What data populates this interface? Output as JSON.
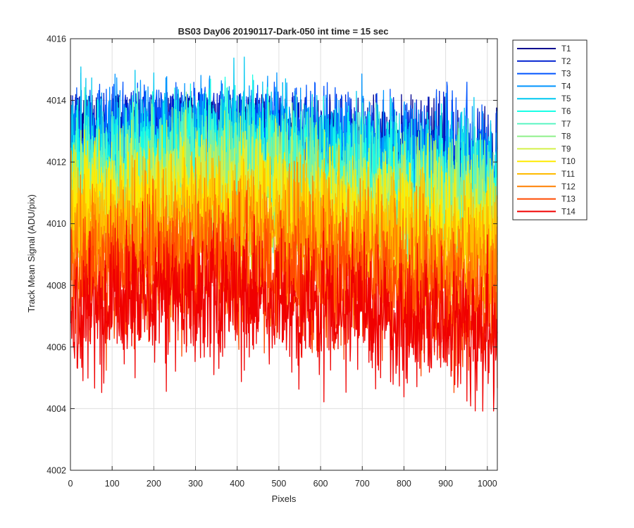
{
  "chart_data": {
    "type": "line",
    "title": "BS03 Day06 20190117-Dark-050 int time = 15 sec",
    "xlabel": "Pixels",
    "ylabel": "Track Mean Signal (ADU/pix)",
    "xlim": [
      0,
      1024
    ],
    "ylim": [
      4002,
      4016
    ],
    "xticks": [
      0,
      100,
      200,
      300,
      400,
      500,
      600,
      700,
      800,
      900,
      1000
    ],
    "yticks": [
      4002,
      4004,
      4006,
      4008,
      4010,
      4012,
      4014,
      4016
    ],
    "grid": true,
    "legend_position": "outside-top-right",
    "x_range_points": [
      1,
      1024
    ],
    "noise_amplitude": 2.4,
    "series": [
      {
        "name": "T1",
        "color": "#00008F",
        "mean": 4012.3,
        "trend": [
          4012.6,
          4012.9,
          4012.4,
          4011.8
        ],
        "min": 4009.4,
        "max": 4014.2
      },
      {
        "name": "T2",
        "color": "#0020D0",
        "mean": 4012.2,
        "trend": [
          4012.5,
          4012.8,
          4012.3,
          4011.6
        ],
        "min": 4009.3,
        "max": 4014.3
      },
      {
        "name": "T3",
        "color": "#0055FF",
        "mean": 4012.1,
        "trend": [
          4012.4,
          4012.7,
          4012.2,
          4011.5
        ],
        "min": 4009.2,
        "max": 4014.6
      },
      {
        "name": "T4",
        "color": "#0095FF",
        "mean": 4011.9,
        "trend": [
          4012.2,
          4012.6,
          4012.0,
          4011.3
        ],
        "min": 4008.9,
        "max": 4014.9
      },
      {
        "name": "T5",
        "color": "#00C8F0",
        "mean": 4011.7,
        "trend": [
          4012.0,
          4012.4,
          4011.8,
          4011.1
        ],
        "min": 4008.6,
        "max": 4015.7
      },
      {
        "name": "T6",
        "color": "#19FFE6",
        "mean": 4011.4,
        "trend": [
          4011.7,
          4012.1,
          4011.5,
          4010.8
        ],
        "min": 4008.3,
        "max": 4015.1
      },
      {
        "name": "T7",
        "color": "#5CF5C4",
        "mean": 4011.1,
        "trend": [
          4011.4,
          4011.8,
          4011.2,
          4010.5
        ],
        "min": 4008.0,
        "max": 4014.6
      },
      {
        "name": "T8",
        "color": "#8EF08A",
        "mean": 4010.8,
        "trend": [
          4011.1,
          4011.5,
          4010.9,
          4010.2
        ],
        "min": 4007.6,
        "max": 4014.3
      },
      {
        "name": "T9",
        "color": "#D4F04A",
        "mean": 4010.4,
        "trend": [
          4010.7,
          4011.1,
          4010.5,
          4009.8
        ],
        "min": 4007.2,
        "max": 4013.7
      },
      {
        "name": "T10",
        "color": "#FFEA00",
        "mean": 4010.0,
        "trend": [
          4010.3,
          4010.7,
          4010.1,
          4009.4
        ],
        "min": 4006.8,
        "max": 4013.3
      },
      {
        "name": "T11",
        "color": "#FFBB00",
        "mean": 4009.5,
        "trend": [
          4009.8,
          4010.2,
          4009.6,
          4008.9
        ],
        "min": 4006.3,
        "max": 4012.8
      },
      {
        "name": "T12",
        "color": "#FF8000",
        "mean": 4008.8,
        "trend": [
          4009.1,
          4009.5,
          4008.9,
          4008.2
        ],
        "min": 4005.6,
        "max": 4012.2
      },
      {
        "name": "T13",
        "color": "#FF4A00",
        "mean": 4007.9,
        "trend": [
          4008.2,
          4008.6,
          4008.0,
          4007.3
        ],
        "min": 4004.5,
        "max": 4011.5
      },
      {
        "name": "T14",
        "color": "#F00000",
        "mean": 4007.0,
        "trend": [
          4007.3,
          4007.7,
          4007.1,
          4006.4
        ],
        "min": 4003.5,
        "max": 4010.8
      }
    ]
  }
}
